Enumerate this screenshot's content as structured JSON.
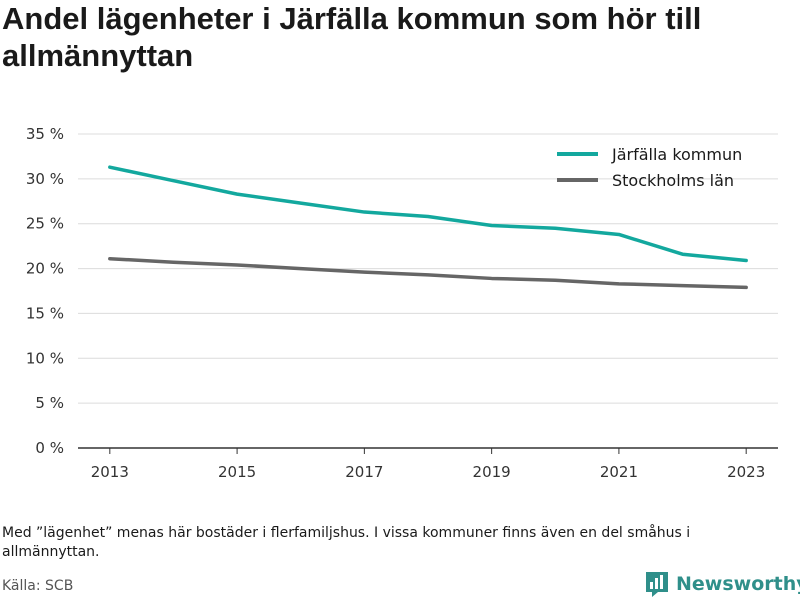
{
  "title": "Andel lägenheter i Järfälla kommun som hör till allmännyttan",
  "footnote": "Med ”lägenhet” menas här bostäder i flerfamiljshus. I vissa kommuner finns även en del småhus i allmännyttan.",
  "source": "Källa: SCB",
  "brand": {
    "name": "Newsworthy",
    "icon": "newsworthy-logo-icon",
    "color": "#2f8f8a"
  },
  "chart_data": {
    "type": "line",
    "x": [
      2013,
      2014,
      2015,
      2016,
      2017,
      2018,
      2019,
      2020,
      2021,
      2022,
      2023
    ],
    "x_ticks": [
      2013,
      2015,
      2017,
      2019,
      2021,
      2023
    ],
    "y_ticks": [
      0,
      5,
      10,
      15,
      20,
      25,
      30,
      35
    ],
    "y_tick_labels": [
      "0 %",
      "5 %",
      "10 %",
      "15 %",
      "20 %",
      "25 %",
      "30 %",
      "35 %"
    ],
    "ylim": [
      0,
      35
    ],
    "xlim": [
      2012.5,
      2023.5
    ],
    "grid": true,
    "legend_position": "top-right",
    "series": [
      {
        "name": "Järfälla kommun",
        "color": "#13a89e",
        "values": [
          31.3,
          29.8,
          28.3,
          27.3,
          26.3,
          25.8,
          24.8,
          24.5,
          23.8,
          21.6,
          20.9
        ]
      },
      {
        "name": "Stockholms län",
        "color": "#666666",
        "values": [
          21.1,
          20.7,
          20.4,
          20.0,
          19.6,
          19.3,
          18.9,
          18.7,
          18.3,
          18.1,
          17.9
        ]
      }
    ]
  }
}
